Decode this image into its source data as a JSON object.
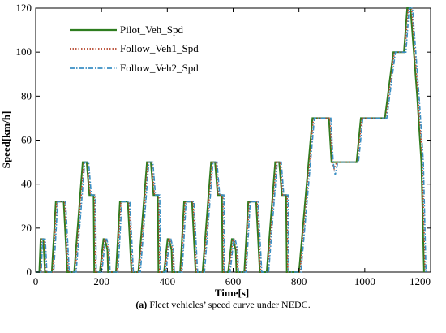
{
  "chart_data": {
    "type": "line",
    "title": "",
    "xlabel": "Time[s]",
    "ylabel": "Speed[km/h]",
    "xlim": [
      0,
      1200
    ],
    "ylim": [
      0,
      120
    ],
    "xticks": [
      0,
      200,
      400,
      600,
      800,
      1000,
      1200
    ],
    "yticks": [
      0,
      20,
      40,
      60,
      80,
      100,
      120
    ],
    "grid": false,
    "legend_position": "top-left",
    "series": [
      {
        "name": "Pilot_Veh_Spd",
        "color": "#2e7d1f",
        "style": "solid",
        "x": [
          0,
          11,
          15,
          23,
          25,
          28,
          49,
          61,
          85,
          96,
          117,
          143,
          155,
          163,
          176,
          178,
          188,
          195,
          206,
          210,
          218,
          220,
          223,
          244,
          256,
          280,
          291,
          312,
          338,
          350,
          358,
          371,
          373,
          383,
          390,
          401,
          405,
          413,
          415,
          418,
          439,
          451,
          475,
          486,
          507,
          533,
          545,
          553,
          566,
          568,
          578,
          585,
          596,
          600,
          608,
          610,
          613,
          634,
          646,
          670,
          681,
          702,
          728,
          740,
          748,
          761,
          763,
          773,
          780,
          800,
          841,
          891,
          899,
          911,
          961,
          975,
          988,
          1000,
          1061,
          1087,
          1119,
          1129,
          1139,
          1159,
          1172,
          1180
        ],
        "values": [
          0,
          0,
          15,
          15,
          10,
          0,
          0,
          32,
          32,
          0,
          0,
          50,
          50,
          35,
          35,
          0,
          0,
          0,
          15,
          15,
          10,
          0,
          0,
          0,
          32,
          32,
          0,
          0,
          50,
          50,
          35,
          35,
          0,
          0,
          0,
          15,
          15,
          10,
          0,
          0,
          0,
          32,
          32,
          0,
          0,
          50,
          50,
          35,
          35,
          0,
          0,
          0,
          15,
          15,
          10,
          0,
          0,
          0,
          32,
          32,
          0,
          0,
          50,
          50,
          35,
          35,
          0,
          0,
          0,
          0,
          70,
          70,
          50,
          50,
          50,
          50,
          70,
          70,
          70,
          100,
          100,
          120,
          120,
          80,
          50,
          0
        ]
      },
      {
        "name": "Follow_Veh1_Spd",
        "color": "#b5442a",
        "style": "dotted",
        "x": [
          0,
          14,
          18,
          26,
          28,
          31,
          52,
          64,
          88,
          99,
          120,
          146,
          158,
          166,
          179,
          181,
          191,
          198,
          209,
          213,
          221,
          223,
          226,
          247,
          259,
          283,
          294,
          315,
          341,
          353,
          361,
          374,
          376,
          386,
          393,
          404,
          408,
          416,
          418,
          421,
          442,
          454,
          478,
          489,
          510,
          536,
          548,
          556,
          569,
          571,
          581,
          588,
          599,
          603,
          611,
          613,
          616,
          637,
          649,
          673,
          684,
          705,
          731,
          743,
          751,
          764,
          766,
          776,
          783,
          803,
          844,
          894,
          901,
          907,
          915,
          964,
          978,
          991,
          1003,
          1064,
          1090,
          1122,
          1132,
          1142,
          1162,
          1175,
          1183
        ],
        "values": [
          0,
          0,
          15,
          15,
          10,
          0,
          0,
          32,
          32,
          0,
          0,
          50,
          50,
          35,
          35,
          0,
          0,
          0,
          15,
          15,
          10,
          0,
          0,
          0,
          32,
          32,
          0,
          0,
          50,
          50,
          35,
          35,
          0,
          0,
          0,
          15,
          15,
          10,
          0,
          0,
          0,
          32,
          32,
          0,
          0,
          50,
          50,
          35,
          35,
          0,
          0,
          0,
          15,
          15,
          10,
          0,
          0,
          0,
          32,
          32,
          0,
          0,
          50,
          50,
          35,
          35,
          0,
          0,
          0,
          0,
          70,
          70,
          50,
          47,
          50,
          50,
          50,
          70,
          70,
          70,
          100,
          100,
          120,
          120,
          80,
          50,
          0
        ]
      },
      {
        "name": "Follow_Veh2_Spd",
        "color": "#3a8fc4",
        "style": "dash-dot",
        "x": [
          0,
          17,
          21,
          29,
          31,
          34,
          55,
          67,
          91,
          102,
          123,
          149,
          161,
          169,
          182,
          184,
          194,
          201,
          212,
          216,
          224,
          226,
          229,
          250,
          262,
          286,
          297,
          318,
          344,
          356,
          364,
          377,
          379,
          389,
          396,
          407,
          411,
          419,
          421,
          424,
          445,
          457,
          481,
          492,
          513,
          539,
          551,
          559,
          572,
          574,
          584,
          591,
          602,
          606,
          614,
          616,
          619,
          640,
          652,
          676,
          687,
          708,
          734,
          746,
          754,
          767,
          769,
          779,
          786,
          806,
          847,
          897,
          904,
          910,
          918,
          967,
          981,
          994,
          1006,
          1067,
          1093,
          1125,
          1135,
          1145,
          1165,
          1178,
          1186
        ],
        "values": [
          0,
          0,
          15,
          15,
          10,
          0,
          0,
          32,
          32,
          0,
          0,
          50,
          50,
          35,
          35,
          0,
          0,
          0,
          15,
          15,
          10,
          0,
          0,
          0,
          32,
          32,
          0,
          0,
          50,
          50,
          35,
          35,
          0,
          0,
          0,
          15,
          15,
          10,
          0,
          0,
          0,
          32,
          32,
          0,
          0,
          50,
          50,
          35,
          35,
          0,
          0,
          0,
          15,
          15,
          10,
          0,
          0,
          0,
          32,
          32,
          0,
          0,
          50,
          50,
          35,
          35,
          0,
          0,
          0,
          0,
          70,
          70,
          50,
          44,
          50,
          50,
          50,
          70,
          70,
          70,
          100,
          100,
          120,
          120,
          80,
          50,
          0
        ]
      }
    ]
  },
  "caption": {
    "label": "(a)",
    "text": " Fleet vehicles’ speed curve under NEDC."
  }
}
